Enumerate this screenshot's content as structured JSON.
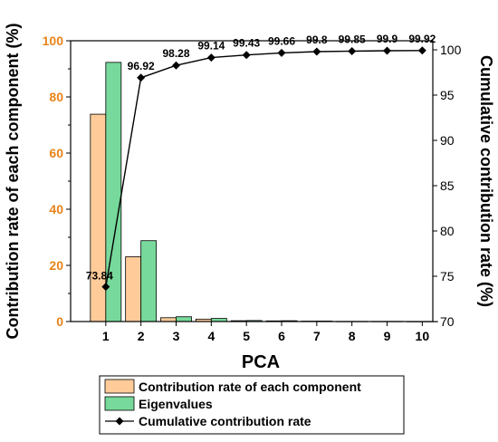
{
  "chart_data": {
    "type": "bar",
    "xlabel": "PCA",
    "ylabel_left": "Contribution rate of each component (%)",
    "ylabel_right": "Cumulative contribution rate (%)",
    "categories": [
      "1",
      "2",
      "3",
      "4",
      "5",
      "6",
      "7",
      "8",
      "9",
      "10"
    ],
    "left_axis": {
      "range": [
        0,
        100
      ],
      "ticks": [
        0,
        20,
        40,
        60,
        80,
        100
      ]
    },
    "right_axis": {
      "range": [
        70,
        101
      ],
      "ticks": [
        70,
        75,
        80,
        85,
        90,
        95,
        100
      ]
    },
    "series": [
      {
        "name": "Contribution rate of each component",
        "kind": "bar",
        "axis": "left",
        "color": "#ffcc99",
        "values": [
          73.84,
          23.08,
          1.36,
          0.86,
          0.29,
          0.23,
          0.14,
          0.05,
          0.05,
          0.02
        ]
      },
      {
        "name": "Eigenvalues",
        "kind": "bar",
        "axis": "left",
        "color": "#77d99b",
        "values": [
          92.3,
          28.8,
          1.7,
          1.1,
          0.36,
          0.29,
          0.17,
          0.06,
          0.06,
          0.03
        ]
      },
      {
        "name": "Cumulative contribution rate",
        "kind": "line",
        "axis": "right",
        "color": "#000000",
        "marker": "diamond",
        "values": [
          73.84,
          96.92,
          98.28,
          99.14,
          99.43,
          99.66,
          99.8,
          99.85,
          99.9,
          99.92
        ],
        "labels": [
          "73.84",
          "96.92",
          "98.28",
          "99.14",
          "99.43",
          "99.66",
          "99.8",
          "99.85",
          "99.9",
          "99.92"
        ]
      }
    ],
    "left_tick_color": "#e8841a",
    "legend_placement": "bottom"
  }
}
